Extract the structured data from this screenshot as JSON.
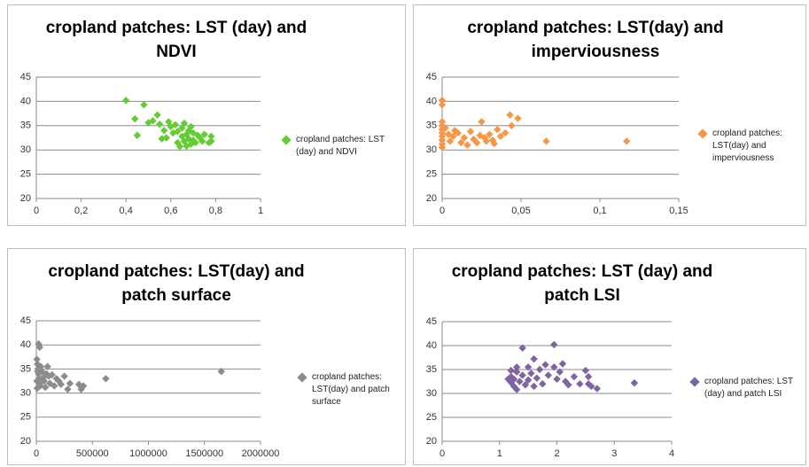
{
  "chart_data": [
    {
      "type": "scatter",
      "title": "cropland patches: LST (day) and NDVI",
      "xlim": [
        0,
        1
      ],
      "xticks": [
        0,
        {
          "value": 0.2,
          "label": "0,2"
        },
        {
          "value": 0.4,
          "label": "0,4"
        },
        {
          "value": 0.6,
          "label": "0,6"
        },
        {
          "value": 0.8,
          "label": "0,8"
        },
        1
      ],
      "ylim": [
        20,
        45
      ],
      "yticks": [
        20,
        25,
        30,
        35,
        40,
        45
      ],
      "grid": true,
      "legend": "right",
      "series": [
        {
          "name": "cropland patches: LST (day) and NDVI",
          "color": "#66cc33",
          "x": [
            0.4,
            0.48,
            0.44,
            0.45,
            0.5,
            0.52,
            0.54,
            0.55,
            0.57,
            0.58,
            0.59,
            0.6,
            0.61,
            0.62,
            0.63,
            0.63,
            0.64,
            0.65,
            0.65,
            0.66,
            0.67,
            0.67,
            0.68,
            0.68,
            0.69,
            0.7,
            0.7,
            0.71,
            0.72,
            0.73,
            0.74,
            0.75,
            0.77,
            0.78,
            0.78,
            0.56,
            0.66,
            0.69
          ],
          "values": [
            40.2,
            39.3,
            36.4,
            33,
            35.6,
            36,
            37.2,
            35.3,
            34,
            32.5,
            35.8,
            34.8,
            33.5,
            35.2,
            31.5,
            33.8,
            30.7,
            32.8,
            34.5,
            31.8,
            33.2,
            30.8,
            32.3,
            34,
            31.2,
            33.5,
            32,
            31.5,
            33,
            32.5,
            31.8,
            33.2,
            31.5,
            32.8,
            31.8,
            32.3,
            35.5,
            34.8
          ]
        }
      ]
    },
    {
      "type": "scatter",
      "title": "cropland patches: LST(day) and imperviousness",
      "xlim": [
        0,
        0.15
      ],
      "xticks": [
        0,
        {
          "value": 0.05,
          "label": "0,05"
        },
        {
          "value": 0.1,
          "label": "0,1"
        },
        {
          "value": 0.15,
          "label": "0,15"
        }
      ],
      "ylim": [
        20,
        45
      ],
      "yticks": [
        20,
        25,
        30,
        35,
        40,
        45
      ],
      "grid": true,
      "legend": "right",
      "series": [
        {
          "name": "cropland patches: LST(day) and imperviousness",
          "color": "#f79646",
          "x": [
            0,
            0,
            0,
            0,
            0,
            0,
            0,
            0,
            0,
            0,
            0.002,
            0.004,
            0.005,
            0.007,
            0.008,
            0.01,
            0.012,
            0.014,
            0.016,
            0.018,
            0.02,
            0.022,
            0.024,
            0.025,
            0.027,
            0.028,
            0.03,
            0.032,
            0.033,
            0.035,
            0.037,
            0.04,
            0.043,
            0.044,
            0.048,
            0.066,
            0.117
          ],
          "values": [
            40.2,
            39.3,
            35.8,
            35,
            34.2,
            33.5,
            32.8,
            32,
            31.2,
            30.5,
            34.5,
            33.2,
            31.8,
            32.8,
            34,
            33.5,
            31.5,
            32.5,
            31,
            33.8,
            32.2,
            31.5,
            33,
            35.8,
            32.5,
            31.8,
            33.2,
            32,
            31.3,
            34.2,
            32.8,
            33.5,
            37.2,
            35,
            36.5,
            31.8,
            31.8
          ]
        }
      ]
    },
    {
      "type": "scatter",
      "title": "cropland patches: LST(day) and patch surface",
      "xlim": [
        0,
        2000000
      ],
      "xticks": [
        0,
        500000,
        1000000,
        1500000,
        2000000
      ],
      "ylim": [
        20,
        45
      ],
      "yticks": [
        20,
        25,
        30,
        35,
        40,
        45
      ],
      "grid": true,
      "legend": "right",
      "series": [
        {
          "name": "cropland patches: LST(day) and patch surface",
          "color": "#8c8c8c",
          "x": [
            20000,
            30000,
            5000,
            10000,
            15000,
            20000,
            25000,
            30000,
            35000,
            40000,
            50000,
            60000,
            70000,
            80000,
            90000,
            100000,
            110000,
            120000,
            140000,
            160000,
            180000,
            200000,
            220000,
            250000,
            280000,
            300000,
            380000,
            400000,
            420000,
            620000,
            1650000,
            5000,
            8000,
            12000
          ],
          "values": [
            40.2,
            39.5,
            37,
            36,
            35,
            34,
            33,
            32,
            31.5,
            35.5,
            34.5,
            33.2,
            32.5,
            31.2,
            34,
            35.5,
            33.5,
            32,
            33.8,
            31.5,
            33,
            32.5,
            31.8,
            33.5,
            30.8,
            32,
            31.8,
            30.8,
            31.5,
            33,
            34.5,
            32.5,
            31,
            34.5
          ]
        }
      ]
    },
    {
      "type": "scatter",
      "title": "cropland patches: LST (day) and patch LSI",
      "xlim": [
        0,
        4
      ],
      "xticks": [
        0,
        1,
        2,
        3,
        4
      ],
      "ylim": [
        20,
        45
      ],
      "yticks": [
        20,
        25,
        30,
        35,
        40,
        45
      ],
      "grid": true,
      "legend": "right",
      "series": [
        {
          "name": "cropland patches: LST (day) and patch LSI",
          "color": "#8064a2",
          "x": [
            1.2,
            1.2,
            1.2,
            1.25,
            1.25,
            1.3,
            1.3,
            1.35,
            1.4,
            1.4,
            1.45,
            1.5,
            1.5,
            1.55,
            1.6,
            1.6,
            1.65,
            1.7,
            1.75,
            1.8,
            1.85,
            1.95,
            1.95,
            2.0,
            2.05,
            2.1,
            2.15,
            2.2,
            2.3,
            2.4,
            2.5,
            2.55,
            2.55,
            2.6,
            2.7,
            3.35,
            1.3,
            1.15
          ],
          "values": [
            34.8,
            33.5,
            32.3,
            31.5,
            33,
            34.5,
            30.8,
            32.5,
            39.5,
            33.8,
            31.8,
            35.5,
            32.8,
            34.2,
            37.2,
            31.5,
            33.2,
            35,
            32,
            36,
            33.8,
            40.2,
            35.5,
            33,
            34.5,
            36.2,
            32.5,
            31.8,
            33.5,
            32,
            34.8,
            33.5,
            32,
            31.5,
            31,
            32.2,
            35.5,
            33
          ]
        }
      ]
    }
  ]
}
